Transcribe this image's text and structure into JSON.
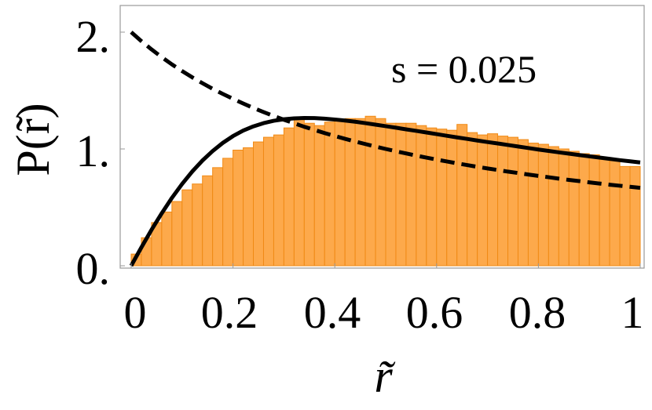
{
  "chart_data": {
    "type": "bar",
    "title": "",
    "annotation": "s = 0.025",
    "xlabel": "r̃",
    "ylabel": "P(r̃)",
    "xlim": [
      0,
      1
    ],
    "ylim": [
      0,
      2.25
    ],
    "grid": false,
    "legend": "none",
    "x_ticks": [
      0,
      0.2,
      0.4,
      0.6,
      0.8,
      1
    ],
    "x_tick_labels": [
      "0",
      "0.2",
      "0.4",
      "0.6",
      "0.8",
      "1"
    ],
    "y_ticks": [
      0,
      1,
      2
    ],
    "y_tick_labels": [
      "0.",
      "1.",
      "2."
    ],
    "histogram": {
      "bin_width": 0.02,
      "bin_starts": [
        0,
        0.02,
        0.04,
        0.06,
        0.08,
        0.1,
        0.12,
        0.14,
        0.16,
        0.18,
        0.2,
        0.22,
        0.24,
        0.26,
        0.28,
        0.3,
        0.32,
        0.34,
        0.36,
        0.38,
        0.4,
        0.42,
        0.44,
        0.46,
        0.48,
        0.5,
        0.52,
        0.54,
        0.56,
        0.58,
        0.6,
        0.62,
        0.64,
        0.66,
        0.68,
        0.7,
        0.72,
        0.74,
        0.76,
        0.78,
        0.8,
        0.82,
        0.84,
        0.86,
        0.88,
        0.9,
        0.92,
        0.94,
        0.96,
        0.98
      ],
      "values": [
        0.1,
        0.24,
        0.37,
        0.46,
        0.55,
        0.65,
        0.7,
        0.77,
        0.84,
        0.92,
        0.99,
        1.01,
        1.06,
        1.1,
        1.12,
        1.18,
        1.27,
        1.22,
        1.2,
        1.23,
        1.25,
        1.26,
        1.26,
        1.28,
        1.26,
        1.22,
        1.22,
        1.22,
        1.2,
        1.18,
        1.17,
        1.16,
        1.21,
        1.14,
        1.12,
        1.13,
        1.11,
        1.1,
        1.08,
        1.05,
        1.04,
        1.02,
        1.0,
        0.98,
        0.96,
        0.95,
        0.92,
        0.9,
        0.85,
        0.85
      ],
      "fill": "#FDA94B",
      "edge": "#F08A15"
    },
    "series": [
      {
        "style": "solid",
        "color": "#000000",
        "x": [
          0,
          0.02,
          0.04,
          0.06,
          0.08,
          0.1,
          0.12,
          0.14,
          0.16,
          0.18,
          0.2,
          0.22,
          0.24,
          0.26,
          0.28,
          0.3,
          0.32,
          0.34,
          0.36,
          0.38,
          0.4,
          0.42,
          0.44,
          0.46,
          0.48,
          0.5,
          0.52,
          0.54,
          0.56,
          0.58,
          0.6,
          0.62,
          0.64,
          0.66,
          0.68,
          0.7,
          0.72,
          0.74,
          0.76,
          0.78,
          0.8,
          0.82,
          0.84,
          0.86,
          0.88,
          0.9,
          0.92,
          0.94,
          0.96,
          0.98,
          1.0
        ],
        "y": [
          0,
          0.147,
          0.288,
          0.42,
          0.543,
          0.654,
          0.754,
          0.842,
          0.918,
          0.983,
          1.037,
          1.081,
          1.115,
          1.141,
          1.16,
          1.172,
          1.179,
          1.182,
          1.181,
          1.177,
          1.17,
          1.162,
          1.152,
          1.141,
          1.129,
          1.117,
          1.105,
          1.092,
          1.079,
          1.066,
          1.053,
          1.04,
          1.027,
          1.015,
          1.002,
          0.99,
          0.978,
          0.966,
          0.954,
          0.942,
          0.93,
          0.919,
          0.908,
          0.897,
          0.886,
          0.876,
          0.865,
          0.855,
          0.845,
          0.835,
          0.826
        ],
        "y_scale_note": "",
        "y_values": [
          0,
          0.157,
          0.308,
          0.449,
          0.581,
          0.7,
          0.807,
          0.901,
          0.982,
          1.052,
          1.11,
          1.157,
          1.193,
          1.221,
          1.241,
          1.254,
          1.262,
          1.265,
          1.264,
          1.259,
          1.252,
          1.243,
          1.233,
          1.221,
          1.208,
          1.195,
          1.182,
          1.168,
          1.155,
          1.141,
          1.127,
          1.113,
          1.099,
          1.086,
          1.072,
          1.059,
          1.047,
          1.034,
          1.021,
          1.008,
          0.995,
          0.983,
          0.971,
          0.96,
          0.948,
          0.937,
          0.926,
          0.915,
          0.904,
          0.894,
          0.884
        ]
      },
      {
        "style": "dashed",
        "color": "#000000",
        "x": [
          0,
          0.02,
          0.04,
          0.06,
          0.08,
          0.1,
          0.12,
          0.14,
          0.16,
          0.18,
          0.2,
          0.22,
          0.24,
          0.26,
          0.28,
          0.3,
          0.32,
          0.34,
          0.36,
          0.38,
          0.4,
          0.42,
          0.44,
          0.46,
          0.48,
          0.5,
          0.52,
          0.54,
          0.56,
          0.58,
          0.6,
          0.62,
          0.64,
          0.66,
          0.68,
          0.7,
          0.72,
          0.74,
          0.76,
          0.78,
          0.8,
          0.82,
          0.84,
          0.86,
          0.88,
          0.9,
          0.92,
          0.94,
          0.96,
          0.98,
          1.0
        ],
        "y_values": [
          2.0,
          1.923,
          1.852,
          1.786,
          1.724,
          1.667,
          1.613,
          1.563,
          1.515,
          1.471,
          1.429,
          1.389,
          1.351,
          1.316,
          1.282,
          1.25,
          1.22,
          1.19,
          1.163,
          1.136,
          1.111,
          1.087,
          1.064,
          1.042,
          1.02,
          1.0,
          0.98,
          0.962,
          0.943,
          0.926,
          0.909,
          0.893,
          0.877,
          0.862,
          0.847,
          0.833,
          0.82,
          0.806,
          0.794,
          0.781,
          0.769,
          0.758,
          0.746,
          0.735,
          0.725,
          0.714,
          0.704,
          0.694,
          0.685,
          0.676,
          0.667
        ]
      }
    ]
  }
}
